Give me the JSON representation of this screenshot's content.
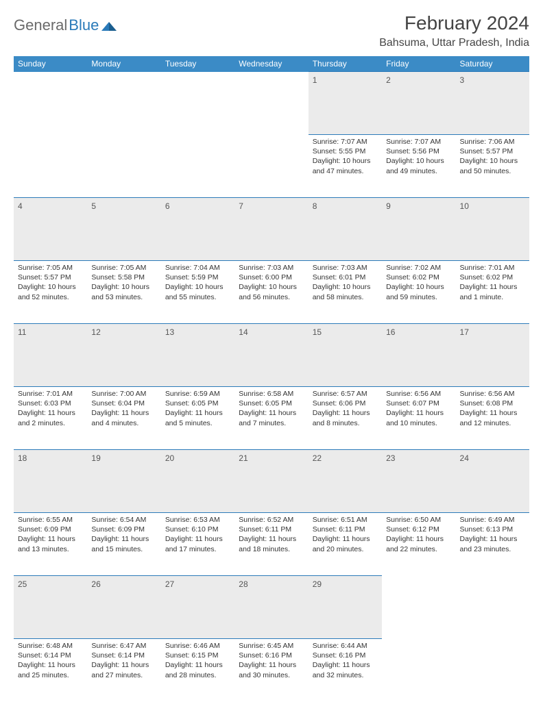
{
  "brand": {
    "name1": "General",
    "name2": "Blue"
  },
  "title": "February 2024",
  "location": "Bahsuma, Uttar Pradesh, India",
  "colors": {
    "header_bg": "#3b8bc6",
    "border": "#2a7ab9",
    "daynum_bg": "#ebebeb",
    "text": "#333333"
  },
  "day_headers": [
    "Sunday",
    "Monday",
    "Tuesday",
    "Wednesday",
    "Thursday",
    "Friday",
    "Saturday"
  ],
  "weeks": [
    [
      null,
      null,
      null,
      null,
      {
        "n": "1",
        "sr": "7:07 AM",
        "ss": "5:55 PM",
        "dl": "10 hours and 47 minutes."
      },
      {
        "n": "2",
        "sr": "7:07 AM",
        "ss": "5:56 PM",
        "dl": "10 hours and 49 minutes."
      },
      {
        "n": "3",
        "sr": "7:06 AM",
        "ss": "5:57 PM",
        "dl": "10 hours and 50 minutes."
      }
    ],
    [
      {
        "n": "4",
        "sr": "7:05 AM",
        "ss": "5:57 PM",
        "dl": "10 hours and 52 minutes."
      },
      {
        "n": "5",
        "sr": "7:05 AM",
        "ss": "5:58 PM",
        "dl": "10 hours and 53 minutes."
      },
      {
        "n": "6",
        "sr": "7:04 AM",
        "ss": "5:59 PM",
        "dl": "10 hours and 55 minutes."
      },
      {
        "n": "7",
        "sr": "7:03 AM",
        "ss": "6:00 PM",
        "dl": "10 hours and 56 minutes."
      },
      {
        "n": "8",
        "sr": "7:03 AM",
        "ss": "6:01 PM",
        "dl": "10 hours and 58 minutes."
      },
      {
        "n": "9",
        "sr": "7:02 AM",
        "ss": "6:02 PM",
        "dl": "10 hours and 59 minutes."
      },
      {
        "n": "10",
        "sr": "7:01 AM",
        "ss": "6:02 PM",
        "dl": "11 hours and 1 minute."
      }
    ],
    [
      {
        "n": "11",
        "sr": "7:01 AM",
        "ss": "6:03 PM",
        "dl": "11 hours and 2 minutes."
      },
      {
        "n": "12",
        "sr": "7:00 AM",
        "ss": "6:04 PM",
        "dl": "11 hours and 4 minutes."
      },
      {
        "n": "13",
        "sr": "6:59 AM",
        "ss": "6:05 PM",
        "dl": "11 hours and 5 minutes."
      },
      {
        "n": "14",
        "sr": "6:58 AM",
        "ss": "6:05 PM",
        "dl": "11 hours and 7 minutes."
      },
      {
        "n": "15",
        "sr": "6:57 AM",
        "ss": "6:06 PM",
        "dl": "11 hours and 8 minutes."
      },
      {
        "n": "16",
        "sr": "6:56 AM",
        "ss": "6:07 PM",
        "dl": "11 hours and 10 minutes."
      },
      {
        "n": "17",
        "sr": "6:56 AM",
        "ss": "6:08 PM",
        "dl": "11 hours and 12 minutes."
      }
    ],
    [
      {
        "n": "18",
        "sr": "6:55 AM",
        "ss": "6:09 PM",
        "dl": "11 hours and 13 minutes."
      },
      {
        "n": "19",
        "sr": "6:54 AM",
        "ss": "6:09 PM",
        "dl": "11 hours and 15 minutes."
      },
      {
        "n": "20",
        "sr": "6:53 AM",
        "ss": "6:10 PM",
        "dl": "11 hours and 17 minutes."
      },
      {
        "n": "21",
        "sr": "6:52 AM",
        "ss": "6:11 PM",
        "dl": "11 hours and 18 minutes."
      },
      {
        "n": "22",
        "sr": "6:51 AM",
        "ss": "6:11 PM",
        "dl": "11 hours and 20 minutes."
      },
      {
        "n": "23",
        "sr": "6:50 AM",
        "ss": "6:12 PM",
        "dl": "11 hours and 22 minutes."
      },
      {
        "n": "24",
        "sr": "6:49 AM",
        "ss": "6:13 PM",
        "dl": "11 hours and 23 minutes."
      }
    ],
    [
      {
        "n": "25",
        "sr": "6:48 AM",
        "ss": "6:14 PM",
        "dl": "11 hours and 25 minutes."
      },
      {
        "n": "26",
        "sr": "6:47 AM",
        "ss": "6:14 PM",
        "dl": "11 hours and 27 minutes."
      },
      {
        "n": "27",
        "sr": "6:46 AM",
        "ss": "6:15 PM",
        "dl": "11 hours and 28 minutes."
      },
      {
        "n": "28",
        "sr": "6:45 AM",
        "ss": "6:16 PM",
        "dl": "11 hours and 30 minutes."
      },
      {
        "n": "29",
        "sr": "6:44 AM",
        "ss": "6:16 PM",
        "dl": "11 hours and 32 minutes."
      },
      null,
      null
    ]
  ],
  "labels": {
    "sunrise": "Sunrise:",
    "sunset": "Sunset:",
    "daylight": "Daylight:"
  }
}
